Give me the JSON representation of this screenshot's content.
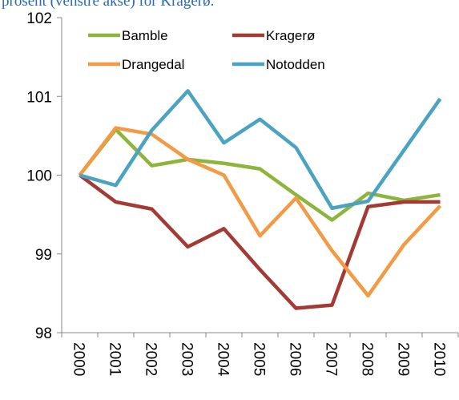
{
  "chart_data": {
    "type": "line",
    "title": "prosent (venstre akse) for Kragerø.",
    "categories": [
      "2000",
      "2001",
      "2002",
      "2003",
      "2004",
      "2005",
      "2006",
      "2007",
      "2008",
      "2009",
      "2010"
    ],
    "series": [
      {
        "name": "Bamble",
        "color": "#8db53c",
        "values": [
          100,
          100.58,
          100.12,
          100.2,
          100.15,
          100.08,
          99.75,
          99.43,
          99.77,
          99.68,
          99.75
        ]
      },
      {
        "name": "Kragerø",
        "color": "#a33a34",
        "values": [
          100,
          99.66,
          99.57,
          99.09,
          99.32,
          98.8,
          98.31,
          98.35,
          99.6,
          99.66,
          99.66
        ]
      },
      {
        "name": "Drangedal",
        "color": "#f39a45",
        "values": [
          100,
          100.6,
          100.52,
          100.2,
          100,
          99.23,
          99.71,
          99.04,
          98.47,
          99.12,
          99.61
        ]
      },
      {
        "name": "Notodden",
        "color": "#4aa3c0",
        "values": [
          100,
          99.87,
          100.57,
          101.07,
          100.41,
          100.71,
          100.35,
          99.58,
          99.67,
          100.32,
          100.97
        ]
      }
    ],
    "ylim": [
      98,
      102
    ],
    "yticks": [
      98,
      99,
      100,
      101,
      102
    ],
    "grid": false
  }
}
